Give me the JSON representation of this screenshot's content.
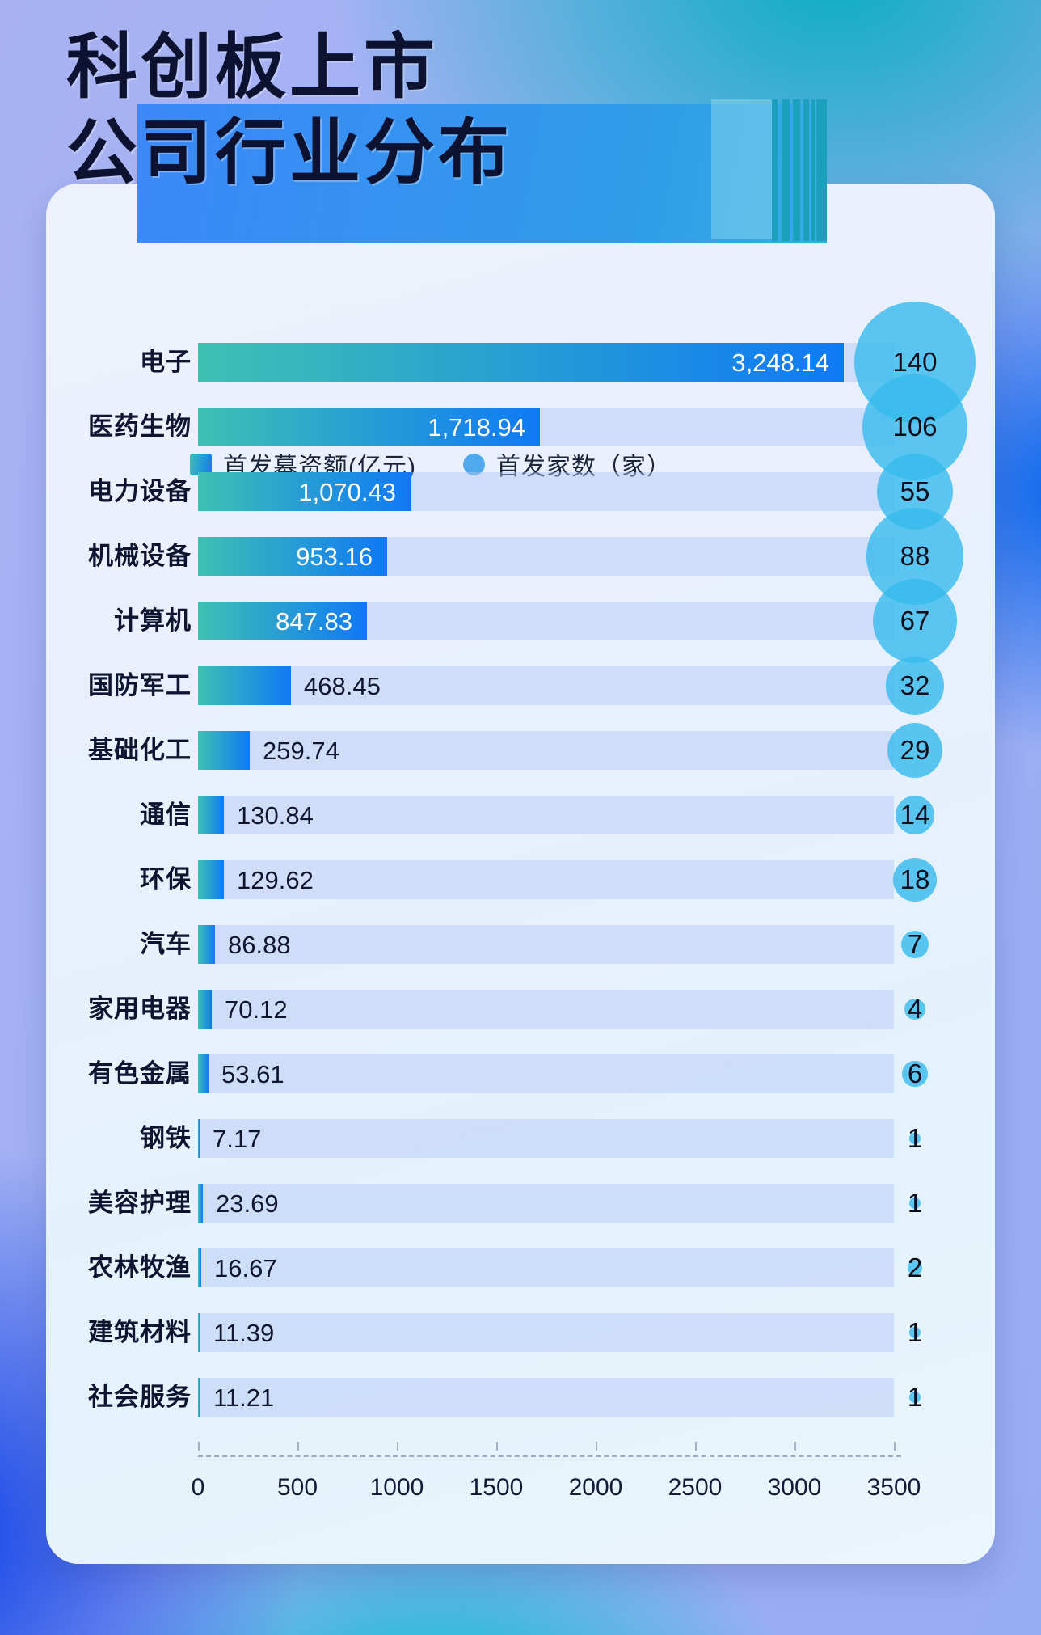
{
  "page_title": "科创板上市公司行业分布",
  "title": {
    "line1": "科创板上市",
    "line2": "公司行业分布"
  },
  "legend": {
    "bar_label": "首发募资额(亿元)",
    "bubble_label": "首发家数（家）"
  },
  "chart_data": {
    "type": "bar",
    "orientation": "horizontal",
    "title": "科创板上市公司行业分布",
    "categories": [
      "电子",
      "医药生物",
      "电力设备",
      "机械设备",
      "计算机",
      "国防军工",
      "基础化工",
      "通信",
      "环保",
      "汽车",
      "家用电器",
      "有色金属",
      "钢铁",
      "美容护理",
      "农林牧渔",
      "建筑材料",
      "社会服务"
    ],
    "series": [
      {
        "name": "首发募资额(亿元)",
        "values": [
          3248.14,
          1718.94,
          1070.43,
          953.16,
          847.83,
          468.45,
          259.74,
          130.84,
          129.62,
          86.88,
          70.12,
          53.61,
          7.17,
          23.69,
          16.67,
          11.39,
          11.21
        ],
        "value_labels": [
          "3,248.14",
          "1,718.94",
          "1,070.43",
          "953.16",
          "847.83",
          "468.45",
          "259.74",
          "130.84",
          "129.62",
          "86.88",
          "70.12",
          "53.61",
          "7.17",
          "23.69",
          "16.67",
          "11.39",
          "11.21"
        ]
      },
      {
        "name": "首发家数（家）",
        "values": [
          140,
          106,
          55,
          88,
          67,
          32,
          29,
          14,
          18,
          7,
          4,
          6,
          1,
          1,
          2,
          1,
          1
        ]
      }
    ],
    "x_ticks": [
      "0",
      "500",
      "1000",
      "1500",
      "2000",
      "2500",
      "3000",
      "3500"
    ],
    "xlim": [
      0,
      3500
    ],
    "inside_value_rows": 5,
    "legend_position": "top",
    "grid": false,
    "colors": {
      "bar_gradient_start": "#3FC0B3",
      "bar_gradient_end": "#1079F5",
      "bar_track": "rgba(178,197,245,0.45)",
      "bubble_fill": "rgba(52,186,238,0.80)",
      "legend_dot": "#4FA9EC",
      "value_inside": "#FFFFFF",
      "value_outside": "#10162E",
      "label_color": "#0F1530",
      "title_color": "#0D1231",
      "band_blue": "#3C88F8",
      "stripe_teal": "#1AA0BA"
    }
  }
}
